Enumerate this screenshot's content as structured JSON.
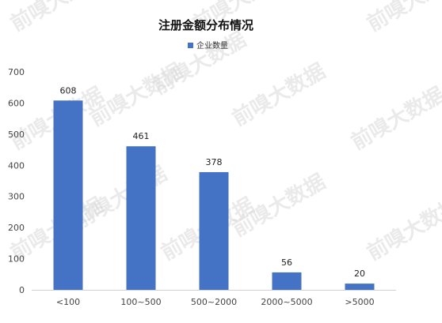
{
  "chart_data": {
    "type": "bar",
    "title": "注册金额分布情况",
    "xlabel": "",
    "ylabel": "",
    "categories": [
      "<100",
      "100~500",
      "500~2000",
      "2000~5000",
      ">5000"
    ],
    "series": [
      {
        "name": "企业数量",
        "values": [
          608,
          461,
          378,
          56,
          20
        ],
        "color": "#4472C4"
      }
    ],
    "ylim": [
      0,
      700
    ],
    "yticks": [
      0,
      100,
      200,
      300,
      400,
      500,
      600,
      700
    ],
    "grid": false,
    "legend_position": "top-center",
    "data_labels": true
  },
  "watermark": "前嗅大数据"
}
